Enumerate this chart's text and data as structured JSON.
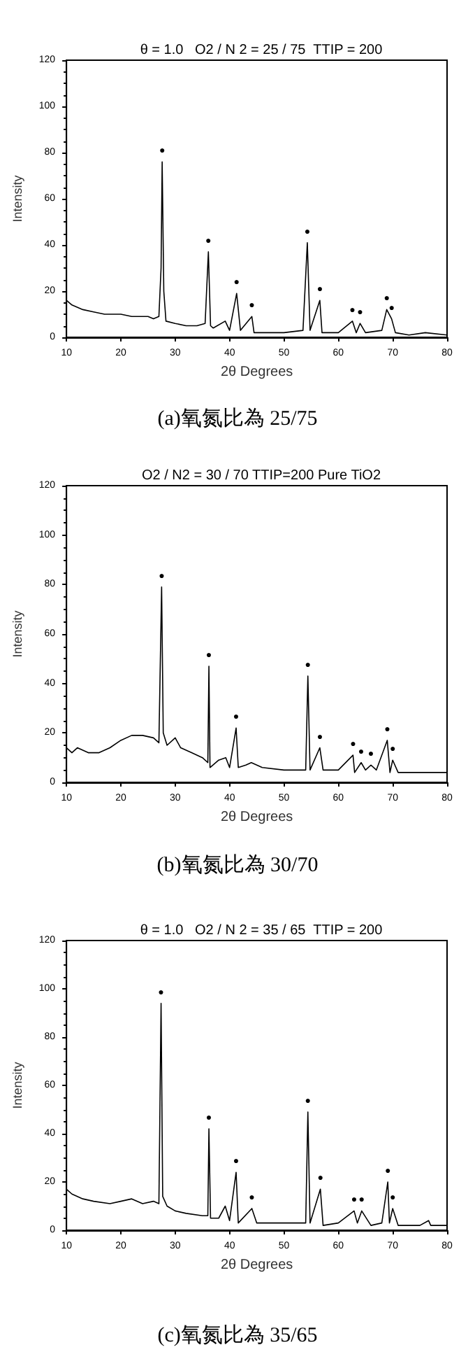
{
  "chart_data": [
    {
      "type": "line",
      "title": "θ = 1.0   O2 / N 2 = 25 / 75  TTIP = 200",
      "xlabel": "2θ Degrees",
      "ylabel": "Intensity",
      "xlim": [
        10,
        80
      ],
      "xticks": [
        10,
        20,
        30,
        40,
        50,
        60,
        70,
        80
      ],
      "ylim": [
        0,
        120
      ],
      "yticks": [
        0,
        20,
        40,
        60,
        80,
        100,
        120
      ],
      "grid": false,
      "marker": "none",
      "line_style": "solid",
      "series": [
        {
          "color": "#000000",
          "x": [
            10,
            11,
            13,
            15,
            17,
            20,
            22,
            25,
            26,
            27,
            27.4,
            27.6,
            27.9,
            28.3,
            30,
            32,
            34,
            35.5,
            36.1,
            36.5,
            37,
            39.2,
            40,
            41.3,
            42,
            44.1,
            44.5,
            47,
            50,
            53.5,
            54.3,
            54.8,
            56.6,
            57,
            60,
            62.6,
            63.3,
            64,
            65,
            68,
            68.9,
            69.8,
            70.5,
            73,
            76,
            80
          ],
          "values": [
            16,
            14,
            12,
            11,
            10,
            10,
            9,
            9,
            8,
            9,
            30,
            76,
            20,
            7,
            6,
            5,
            5,
            6,
            37,
            5,
            4,
            7,
            3,
            19,
            3,
            9,
            2,
            2,
            2,
            3,
            41,
            3,
            16,
            2,
            2,
            7,
            2,
            6,
            2,
            3,
            12,
            8,
            2,
            1,
            2,
            1
          ]
        }
      ],
      "annotations": [
        "(a)氧氮比為 25/75",
        {
          "text": "●",
          "x": 27.6,
          "y": 76
        },
        {
          "text": "●",
          "x": 36.1,
          "y": 37
        },
        {
          "text": "●",
          "x": 41.3,
          "y": 19
        },
        {
          "text": "●",
          "x": 44.1,
          "y": 9
        },
        {
          "text": "●",
          "x": 54.3,
          "y": 41
        },
        {
          "text": "●",
          "x": 56.6,
          "y": 16
        },
        {
          "text": "●",
          "x": 62.6,
          "y": 7
        },
        {
          "text": "●",
          "x": 64,
          "y": 6
        },
        {
          "text": "●",
          "x": 68.9,
          "y": 12
        },
        {
          "text": "●",
          "x": 69.8,
          "y": 8
        }
      ]
    },
    {
      "type": "line",
      "title": "O2 / N2 = 30 / 70 TTIP=200 Pure TiO2",
      "xlabel": "2θ Degrees",
      "ylabel": "Intensity",
      "xlim": [
        10,
        80
      ],
      "xticks": [
        10,
        20,
        30,
        40,
        50,
        60,
        70,
        80
      ],
      "ylim": [
        0,
        120
      ],
      "yticks": [
        0,
        20,
        40,
        60,
        80,
        100,
        120
      ],
      "grid": false,
      "marker": "none",
      "line_style": "solid",
      "series": [
        {
          "color": "#000000",
          "x": [
            10,
            11,
            12,
            14,
            16,
            18,
            20,
            22,
            24,
            26,
            27,
            27.5,
            27.8,
            28.5,
            30,
            31,
            33,
            35,
            36,
            36.2,
            36.4,
            38,
            39.3,
            40,
            41.2,
            41.6,
            43,
            44,
            46,
            50,
            54,
            54.4,
            54.8,
            56.6,
            57.2,
            60,
            62.7,
            63,
            64.2,
            65,
            66,
            67,
            69,
            69.5,
            70,
            71,
            74,
            77,
            80
          ],
          "values": [
            14,
            12,
            14,
            12,
            12,
            14,
            17,
            19,
            19,
            18,
            16,
            79,
            20,
            15,
            18,
            14,
            12,
            10,
            8,
            47,
            6,
            9,
            10,
            6,
            22,
            6,
            7,
            8,
            6,
            5,
            5,
            43,
            5,
            14,
            5,
            5,
            11,
            4,
            8,
            5,
            7,
            5,
            17,
            4,
            9,
            4,
            4,
            4,
            4
          ]
        }
      ],
      "annotations": [
        "(b)氧氮比為 30/70",
        {
          "text": "●",
          "x": 27.5,
          "y": 79
        },
        {
          "text": "●",
          "x": 36.2,
          "y": 47
        },
        {
          "text": "●",
          "x": 41.2,
          "y": 22
        },
        {
          "text": "●",
          "x": 54.4,
          "y": 43
        },
        {
          "text": "●",
          "x": 56.6,
          "y": 14
        },
        {
          "text": "●",
          "x": 62.7,
          "y": 11
        },
        {
          "text": "●",
          "x": 64.2,
          "y": 8
        },
        {
          "text": "●",
          "x": 66,
          "y": 7
        },
        {
          "text": "●",
          "x": 69,
          "y": 17
        },
        {
          "text": "●",
          "x": 70,
          "y": 9
        }
      ]
    },
    {
      "type": "line",
      "title": "θ = 1.0   O2 / N 2 = 35 / 65  TTIP = 200",
      "xlabel": "2θ Degrees",
      "ylabel": "Intensity",
      "xlim": [
        10,
        80
      ],
      "xticks": [
        10,
        20,
        30,
        40,
        50,
        60,
        70,
        80
      ],
      "ylim": [
        0,
        120
      ],
      "yticks": [
        0,
        20,
        40,
        60,
        80,
        100,
        120
      ],
      "grid": false,
      "marker": "none",
      "line_style": "solid",
      "series": [
        {
          "color": "#000000",
          "x": [
            10,
            11,
            13,
            15,
            18,
            20,
            22,
            24,
            26,
            27,
            27.4,
            27.7,
            28.5,
            30,
            32,
            35,
            36,
            36.2,
            36.5,
            38,
            39.2,
            40,
            41.2,
            41.6,
            44.1,
            45,
            50,
            54,
            54.4,
            54.8,
            56.7,
            57.2,
            60,
            62.9,
            63.5,
            64.3,
            66,
            68,
            69.1,
            69.4,
            70,
            71,
            75,
            76.6,
            77,
            80
          ],
          "values": [
            17,
            15,
            13,
            12,
            11,
            12,
            13,
            11,
            12,
            11,
            94,
            14,
            10,
            8,
            7,
            6,
            6,
            42,
            5,
            5,
            10,
            4,
            24,
            3,
            9,
            3,
            3,
            3,
            49,
            3,
            17,
            2,
            3,
            8,
            3,
            8,
            2,
            3,
            20,
            3,
            9,
            2,
            2,
            4,
            2,
            2
          ]
        }
      ],
      "annotations": [
        "(c)氧氮比為 35/65",
        {
          "text": "●",
          "x": 27.4,
          "y": 94
        },
        {
          "text": "●",
          "x": 36.2,
          "y": 42
        },
        {
          "text": "●",
          "x": 41.2,
          "y": 24
        },
        {
          "text": "●",
          "x": 44.1,
          "y": 9
        },
        {
          "text": "●",
          "x": 54.4,
          "y": 49
        },
        {
          "text": "●",
          "x": 56.7,
          "y": 17
        },
        {
          "text": "●",
          "x": 62.9,
          "y": 8
        },
        {
          "text": "●",
          "x": 64.3,
          "y": 8
        },
        {
          "text": "●",
          "x": 69.1,
          "y": 20
        },
        {
          "text": "●",
          "x": 70,
          "y": 9
        }
      ]
    }
  ]
}
